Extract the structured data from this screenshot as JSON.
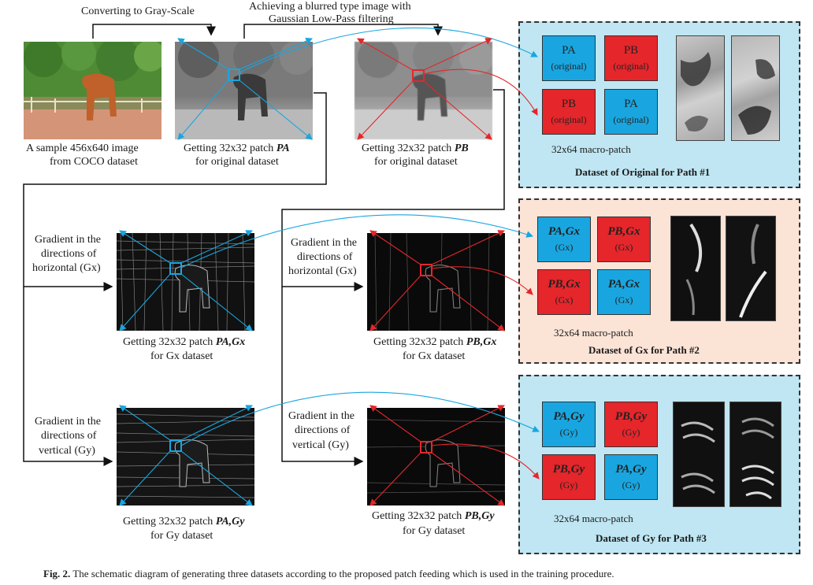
{
  "top_labels": {
    "gray": "Converting to Gray-Scale",
    "blur_line1": "Achieving a blurred type image with",
    "blur_line2": "Gaussian Low-Pass filtering"
  },
  "sample": {
    "line1": "A sample 456x640 image",
    "line2": "from COCO dataset"
  },
  "patchA_orig": {
    "line1": "Getting 32x32 patch ",
    "sym": "PA",
    "line2": "for original dataset"
  },
  "patchB_orig": {
    "line1": "Getting 32x32 patch ",
    "sym": "PB",
    "line2": "for original dataset"
  },
  "gx_left": {
    "line1": "Gradient in the",
    "line2": "directions of",
    "line3": "horizontal (Gx)"
  },
  "gx_mid": {
    "line1": "Gradient in the",
    "line2": "directions of",
    "line3": "horizontal (Gx)"
  },
  "gy_left": {
    "line1": "Gradient in the",
    "line2": "directions of",
    "line3": "vertical (Gy)"
  },
  "gy_mid": {
    "line1": "Gradient in the",
    "line2": "directions of",
    "line3": "vertical (Gy)"
  },
  "patchA_gx": {
    "line1": "Getting 32x32 patch ",
    "sym": "PA,Gx",
    "line2": "for Gx dataset"
  },
  "patchB_gx": {
    "line1": "Getting 32x32 patch ",
    "sym": "PB,Gx",
    "line2": "for Gx dataset"
  },
  "patchA_gy": {
    "line1": "Getting 32x32 patch ",
    "sym": "PA,Gy",
    "line2": "for Gy dataset"
  },
  "patchB_gy": {
    "line1": "Getting 32x32 patch ",
    "sym": "PB,Gy",
    "line2": "for Gy dataset"
  },
  "panel1": {
    "cells": [
      {
        "sym": "PA",
        "sub": "(original)",
        "color": "blue"
      },
      {
        "sym": "PB",
        "sub": "(original)",
        "color": "red"
      },
      {
        "sym": "PB",
        "sub": "(original)",
        "color": "red"
      },
      {
        "sym": "PA",
        "sub": "(original)",
        "color": "blue"
      }
    ],
    "macro": "32x64 macro-patch",
    "title": "Dataset of Original for Path #1",
    "bg": "#bfe6f2"
  },
  "panel2": {
    "cells": [
      {
        "sym": "PA,Gx",
        "sub": "(Gx)",
        "color": "blue"
      },
      {
        "sym": "PB,Gx",
        "sub": "(Gx)",
        "color": "red"
      },
      {
        "sym": "PB,Gx",
        "sub": "(Gx)",
        "color": "red"
      },
      {
        "sym": "PA,Gx",
        "sub": "(Gx)",
        "color": "blue"
      }
    ],
    "macro": "32x64 macro-patch",
    "title": "Dataset of Gx for Path #2",
    "bg": "#fbe3d6"
  },
  "panel3": {
    "cells": [
      {
        "sym": "PA,Gy",
        "sub": "(Gy)",
        "color": "blue"
      },
      {
        "sym": "PB,Gy",
        "sub": "(Gy)",
        "color": "red"
      },
      {
        "sym": "PB,Gy",
        "sub": "(Gy)",
        "color": "red"
      },
      {
        "sym": "PA,Gy",
        "sub": "(Gy)",
        "color": "blue"
      }
    ],
    "macro": "32x64 macro-patch",
    "title": "Dataset of Gy for Path #3",
    "bg": "#bfe6f2"
  },
  "caption": {
    "label": "Fig. 2.",
    "text": " The schematic diagram of generating three datasets according to the proposed patch feeding which is used in the training procedure."
  },
  "colors": {
    "blue": "#19a6e0",
    "red": "#e5262b"
  }
}
